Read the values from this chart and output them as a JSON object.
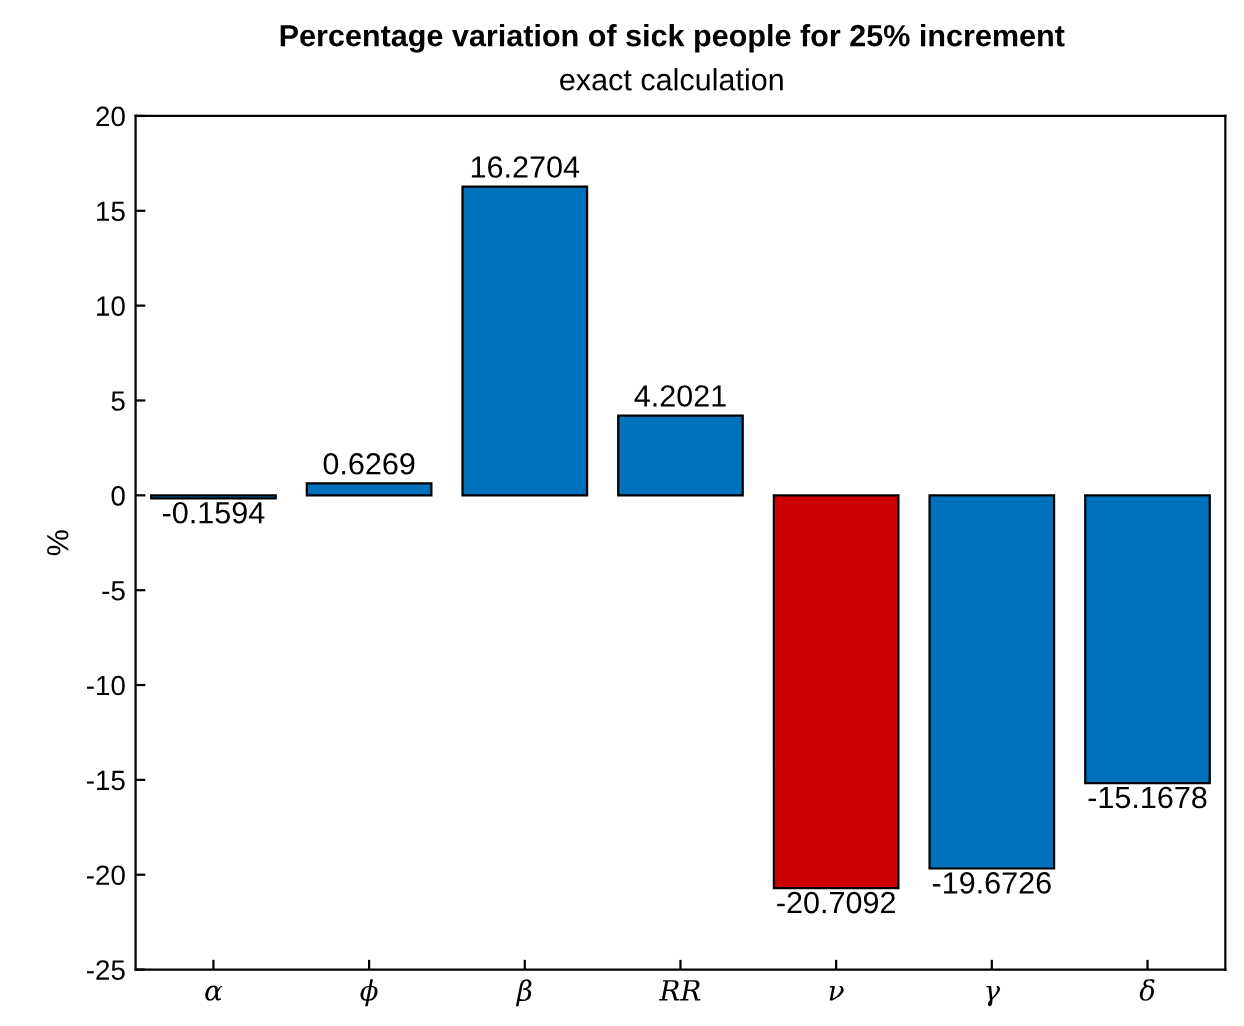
{
  "chart_data": {
    "type": "bar",
    "title": "Percentage variation of sick people for 25% increment",
    "subtitle": "exact calculation",
    "ylabel": "%",
    "categories": [
      "α",
      "ϕ",
      "β",
      "RR",
      "ν",
      "γ",
      "δ"
    ],
    "values": [
      -0.1594,
      0.6269,
      16.2704,
      4.2021,
      -20.7092,
      -19.6726,
      -15.1678
    ],
    "colors": [
      "#0072bd",
      "#0072bd",
      "#0072bd",
      "#0072bd",
      "#cc0000",
      "#0072bd",
      "#0072bd"
    ],
    "ylim": [
      -25,
      20
    ],
    "yticks": [
      -25,
      -20,
      -15,
      -10,
      -5,
      0,
      5,
      10,
      15,
      20
    ],
    "grid": false,
    "data_labels": true
  }
}
